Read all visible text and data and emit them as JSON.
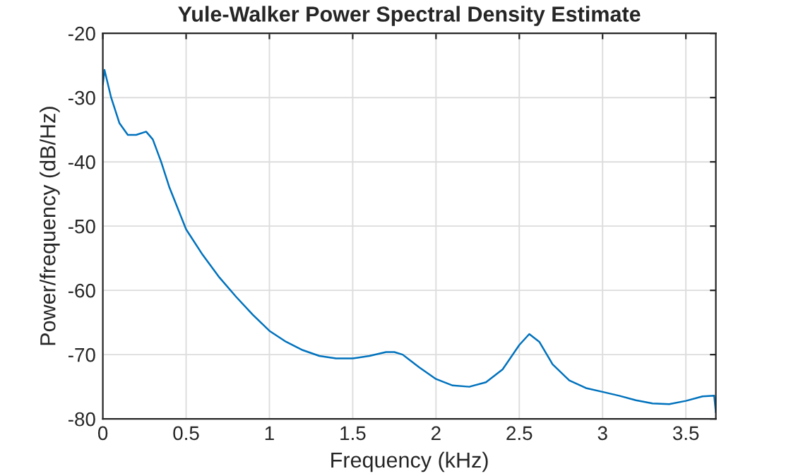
{
  "chart_data": {
    "type": "line",
    "title": "Yule-Walker Power Spectral Density Estimate",
    "xlabel": "Frequency (kHz)",
    "ylabel": "Power/frequency (dB/Hz)",
    "series": [
      {
        "color": "#0072bd",
        "x": [
          0,
          0.01,
          0.05,
          0.1,
          0.15,
          0.2,
          0.26,
          0.3,
          0.35,
          0.4,
          0.5,
          0.6,
          0.7,
          0.8,
          0.9,
          1.0,
          1.1,
          1.2,
          1.3,
          1.4,
          1.5,
          1.6,
          1.7,
          1.75,
          1.8,
          1.9,
          2.0,
          2.1,
          2.2,
          2.3,
          2.4,
          2.5,
          2.56,
          2.62,
          2.7,
          2.8,
          2.9,
          3.0,
          3.1,
          3.2,
          3.3,
          3.4,
          3.5,
          3.6,
          3.67,
          3.68
        ],
        "values": [
          -28,
          -25.7,
          -30,
          -34,
          -35.8,
          -35.8,
          -35.3,
          -36.5,
          -40,
          -44,
          -50.5,
          -54.5,
          -58,
          -61,
          -63.8,
          -66.3,
          -68,
          -69.3,
          -70.2,
          -70.6,
          -70.6,
          -70.2,
          -69.6,
          -69.6,
          -70,
          -72,
          -73.8,
          -74.8,
          -75,
          -74.3,
          -72.3,
          -68.5,
          -66.8,
          -68,
          -71.5,
          -74,
          -75.2,
          -75.8,
          -76.4,
          -77.1,
          -77.6,
          -77.7,
          -77.2,
          -76.5,
          -76.4,
          -79
        ]
      }
    ],
    "xlim": [
      0,
      3.68
    ],
    "xticks": [
      0,
      0.5,
      1,
      1.5,
      2,
      2.5,
      3,
      3.5
    ],
    "ylim": [
      -80,
      -20
    ],
    "yticks": [
      -80,
      -70,
      -60,
      -50,
      -40,
      -30,
      -20
    ],
    "grid": true,
    "legend": false
  }
}
